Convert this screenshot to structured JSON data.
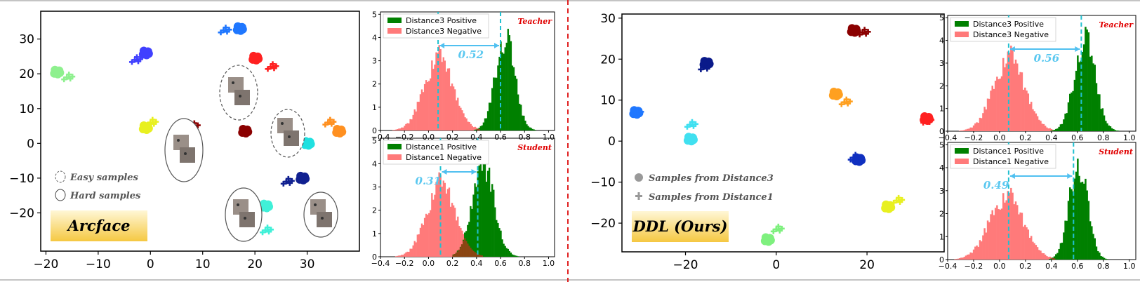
{
  "chart_data": [
    {
      "type": "scatter",
      "panel": "arcface-tsne",
      "x_ticks": [
        "−20",
        "−10",
        "0",
        "10",
        "20",
        "30"
      ],
      "y_ticks": [
        "30",
        "20",
        "10",
        "0",
        "−10",
        "−20"
      ],
      "xlim": [
        -21,
        40
      ],
      "ylim": [
        -31,
        38
      ],
      "legend": [
        "Easy samples",
        "Hard samples"
      ],
      "badge": "Arcface",
      "clusters": [
        {
          "color": "#1f77ff",
          "dot": [
            17,
            33
          ],
          "plus": [
            14,
            32.5
          ]
        },
        {
          "color": "#4040ff",
          "dot": [
            -1,
            26
          ],
          "plus": [
            -3,
            24
          ]
        },
        {
          "color": "#8ef08e",
          "dot": [
            -18,
            20.5
          ],
          "plus": [
            -16,
            19
          ]
        },
        {
          "color": "#ff2020",
          "dot": [
            20,
            24.5
          ],
          "plus": [
            23,
            22
          ]
        },
        {
          "color": "#8b0000",
          "dot": [
            18,
            3.5
          ],
          "plus": [
            8,
            5
          ]
        },
        {
          "color": "#e8f020",
          "dot": [
            -1,
            4.5
          ],
          "plus": [
            0,
            6
          ]
        },
        {
          "color": "#ff9020",
          "dot": [
            36,
            3.5
          ],
          "plus": [
            34,
            6
          ]
        },
        {
          "color": "#20e0e0",
          "dot": [
            30,
            0
          ],
          "plus": [
            27,
            2
          ]
        },
        {
          "color": "#102090",
          "dot": [
            29,
            -10
          ],
          "plus": [
            26,
            -11
          ]
        },
        {
          "color": "#40f0d8",
          "dot": [
            22,
            -18
          ],
          "plus": [
            22,
            -25
          ]
        }
      ]
    },
    {
      "type": "bar",
      "panel": "arcface-teacher-hist",
      "tag": "Teacher",
      "series": [
        {
          "name": "Distance3 Positive",
          "color": "#008000",
          "peak": 0.63,
          "sd": 0.08,
          "max": 4.0
        },
        {
          "name": "Distance3 Negative",
          "color": "#ff7a7a",
          "peak": 0.08,
          "sd": 0.12,
          "max": 3.2
        }
      ],
      "gap_label": "0.52",
      "markers": [
        0.08,
        0.6
      ],
      "x_ticks": [
        "−0.4",
        "−0.2",
        "0.0",
        "0.2",
        "0.4",
        "0.6",
        "0.8",
        "1.0"
      ],
      "y_ticks": [
        "0",
        "1",
        "2",
        "3",
        "4",
        "5"
      ],
      "xlim": [
        -0.4,
        1.05
      ],
      "ylim": [
        0,
        5.1
      ]
    },
    {
      "type": "bar",
      "panel": "arcface-student-hist",
      "tag": "Student",
      "series": [
        {
          "name": "Distance1 Positive",
          "color": "#008000",
          "peak": 0.45,
          "sd": 0.09,
          "max": 4.0
        },
        {
          "name": "Distance1 Negative",
          "color": "#ff7a7a",
          "peak": 0.1,
          "sd": 0.12,
          "max": 3.2
        }
      ],
      "gap_label": "0.31",
      "markers": [
        0.1,
        0.41
      ],
      "x_ticks": [
        "−0.4",
        "−0.2",
        "0.0",
        "0.2",
        "0.4",
        "0.6",
        "0.8",
        "1.0"
      ],
      "y_ticks": [
        "0",
        "1",
        "2",
        "3",
        "4",
        "5"
      ],
      "xlim": [
        -0.4,
        1.05
      ],
      "ylim": [
        0,
        5.1
      ]
    },
    {
      "type": "scatter",
      "panel": "ddl-tsne",
      "x_ticks": [
        "−20",
        "0",
        "20"
      ],
      "y_ticks": [
        "30",
        "20",
        "10",
        "0",
        "−10",
        "−20"
      ],
      "xlim": [
        -34,
        37
      ],
      "ylim": [
        -27,
        31
      ],
      "legend": [
        "Samples from Distance3",
        "Samples from Distance1"
      ],
      "badge": "DDL (Ours)",
      "clusters": [
        {
          "color": "#8b0000",
          "dot": [
            17,
            27
          ],
          "plus": [
            19,
            26.5
          ]
        },
        {
          "color": "#0a1a8a",
          "dot": [
            -15.5,
            19
          ],
          "plus": [
            -16,
            18
          ]
        },
        {
          "color": "#1f77ff",
          "dot": [
            -31,
            7
          ],
          "plus": [
            -31,
            7
          ]
        },
        {
          "color": "#ffa020",
          "dot": [
            13,
            11.5
          ],
          "plus": [
            15,
            9.5
          ]
        },
        {
          "color": "#ff2020",
          "dot": [
            33,
            5.5
          ],
          "plus": [
            33,
            5
          ]
        },
        {
          "color": "#40e0f0",
          "dot": [
            -19,
            0.5
          ],
          "plus": [
            -19,
            4
          ]
        },
        {
          "color": "#1030c0",
          "dot": [
            18,
            -4.5
          ],
          "plus": [
            17,
            -4
          ]
        },
        {
          "color": "#e8f020",
          "dot": [
            24.5,
            -16
          ],
          "plus": [
            26.5,
            -14.5
          ]
        },
        {
          "color": "#7ef07e",
          "dot": [
            -2,
            -24
          ],
          "plus": [
            0,
            -21.5
          ]
        }
      ]
    },
    {
      "type": "bar",
      "panel": "ddl-teacher-hist",
      "tag": "Teacher",
      "series": [
        {
          "name": "Distance3 Positive",
          "color": "#008000",
          "peak": 0.65,
          "sd": 0.08,
          "max": 4.0
        },
        {
          "name": "Distance3 Negative",
          "color": "#ff7a7a",
          "peak": 0.07,
          "sd": 0.12,
          "max": 3.3
        }
      ],
      "gap_label": "0.56",
      "markers": [
        0.07,
        0.63
      ],
      "x_ticks": [
        "−0.4",
        "−0.2",
        "0.0",
        "0.2",
        "0.4",
        "0.6",
        "0.8",
        "1.0"
      ],
      "y_ticks": [
        "0",
        "1",
        "2",
        "3",
        "4",
        "5"
      ],
      "xlim": [
        -0.4,
        1.05
      ],
      "ylim": [
        0,
        5.1
      ]
    },
    {
      "type": "bar",
      "panel": "ddl-student-hist",
      "tag": "Student",
      "series": [
        {
          "name": "Distance1 Positive",
          "color": "#008000",
          "peak": 0.6,
          "sd": 0.07,
          "max": 4.2
        },
        {
          "name": "Distance1 Negative",
          "color": "#ff7a7a",
          "peak": 0.05,
          "sd": 0.13,
          "max": 2.8
        }
      ],
      "gap_label": "0.49",
      "markers": [
        0.07,
        0.57
      ],
      "x_ticks": [
        "−0.4",
        "−0.2",
        "0.0",
        "0.2",
        "0.4",
        "0.6",
        "0.8",
        "1.0"
      ],
      "y_ticks": [
        "0",
        "1",
        "2",
        "3",
        "4",
        "5"
      ],
      "xlim": [
        -0.4,
        1.05
      ],
      "ylim": [
        0,
        5.1
      ]
    }
  ]
}
